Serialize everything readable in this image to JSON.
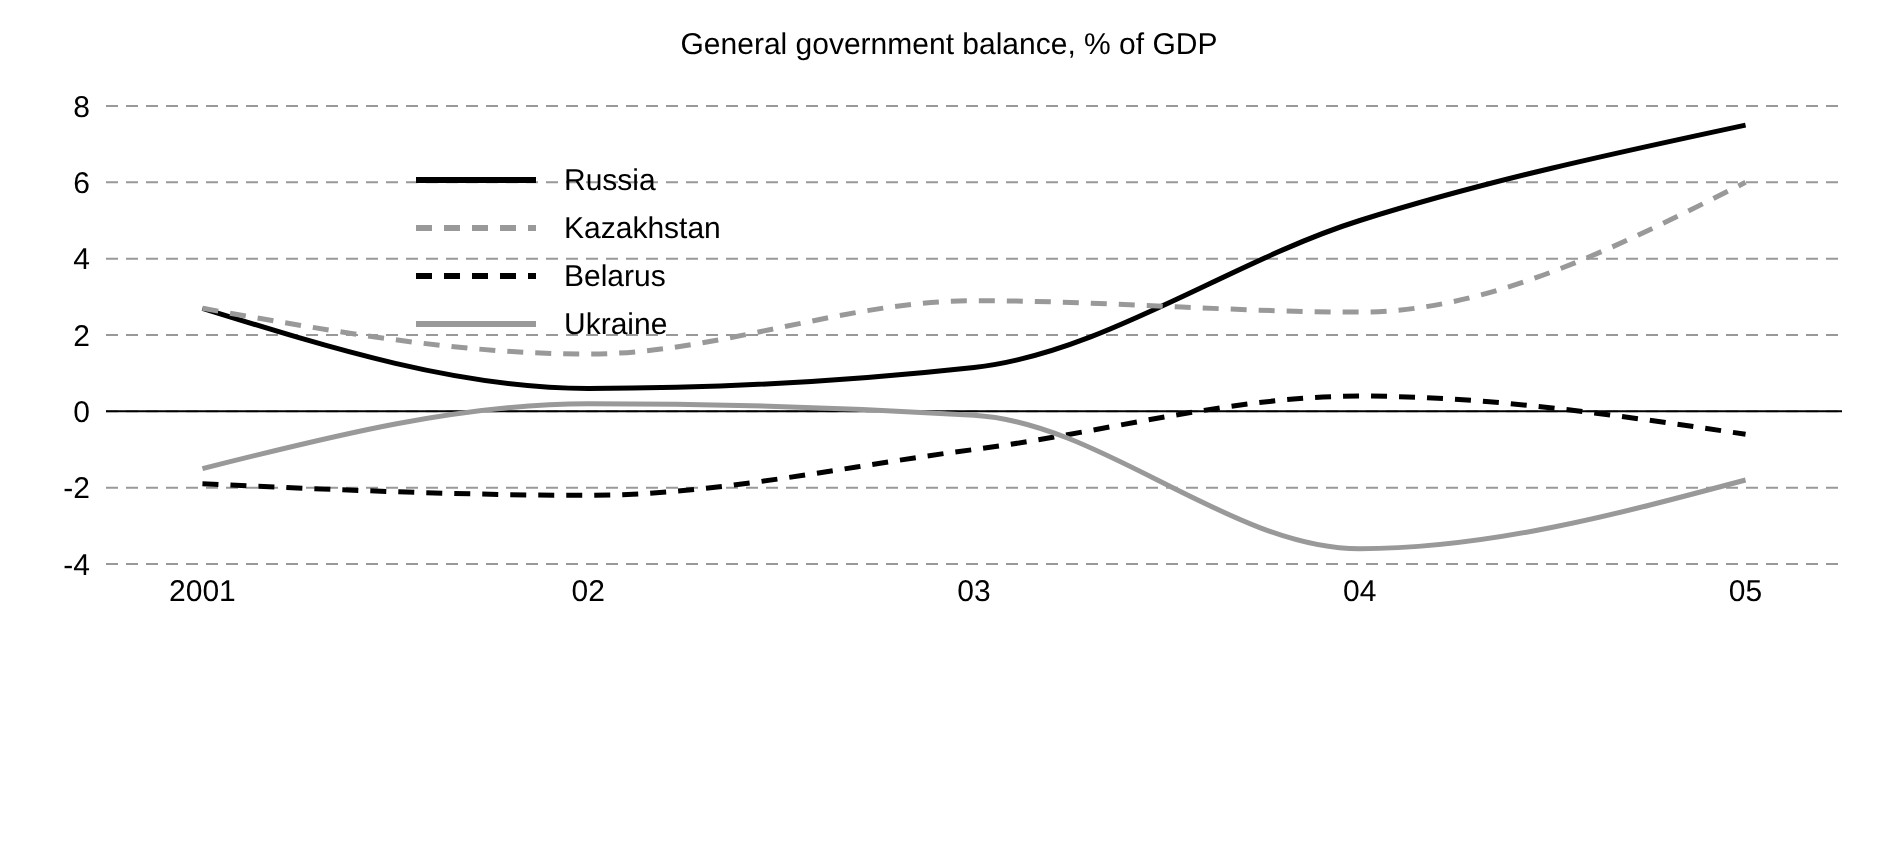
{
  "chart_data": {
    "type": "line",
    "title": "General government balance, % of GDP",
    "categories": [
      "2001",
      "02",
      "03",
      "04",
      "05"
    ],
    "series": [
      {
        "name": "Russia",
        "color": "#000000",
        "line_style": "solid",
        "values": [
          2.7,
          0.6,
          1.15,
          5.0,
          7.5
        ]
      },
      {
        "name": "Kazakhstan",
        "color": "#999999",
        "line_style": "dashed",
        "values": [
          2.7,
          1.5,
          2.9,
          2.6,
          6.0
        ]
      },
      {
        "name": "Belarus",
        "color": "#000000",
        "line_style": "dashed",
        "values": [
          -1.9,
          -2.2,
          -1.0,
          0.4,
          -0.6
        ]
      },
      {
        "name": "Ukraine",
        "color": "#999999",
        "line_style": "solid",
        "values": [
          -1.5,
          0.2,
          -0.1,
          -3.6,
          -1.8
        ]
      }
    ],
    "ylim": [
      -4,
      8
    ],
    "yticks": [
      -4,
      -2,
      0,
      2,
      4,
      6,
      8
    ],
    "grid": "y",
    "legend": "top left",
    "marker": "none",
    "ref_lines": [
      {
        "axis": "y",
        "value": 0,
        "color": "#000000"
      }
    ]
  }
}
